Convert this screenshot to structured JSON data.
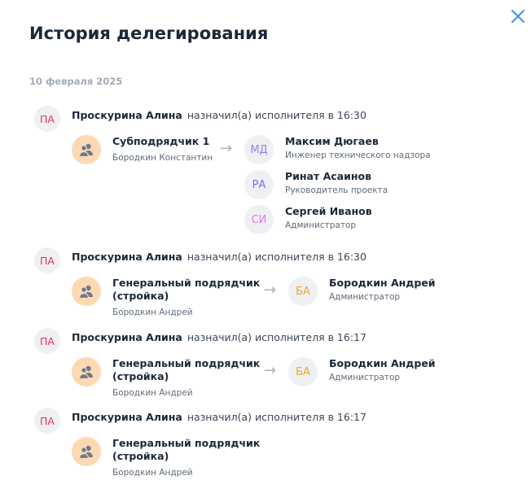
{
  "title": "История делегирования",
  "date": "10 февраля 2025",
  "colors": {
    "actor": "#e8334a",
    "md": "#a27af0",
    "ra": "#7b6cf2",
    "si": "#e07af0",
    "ba": "#f5a623",
    "group_bg": "#fdd9b3"
  },
  "entries": [
    {
      "actor_initials": "ПА",
      "actor": "Проскурина Алина",
      "action": "назначил(а) исполнителя в 16:30",
      "group": {
        "name": "Субподрядчик 1",
        "person": "Бородкин Константин"
      },
      "assignees": [
        {
          "initials": "МД",
          "name": "Максим Дюгаев",
          "role": "Инженер технического надзора",
          "color": "#a27af0"
        },
        {
          "initials": "РА",
          "name": "Ринат Асаинов",
          "role": "Руководитель проекта",
          "color": "#7b6cf2"
        },
        {
          "initials": "СИ",
          "name": "Сергей Иванов",
          "role": "Администратор",
          "color": "#e07af0"
        }
      ]
    },
    {
      "actor_initials": "ПА",
      "actor": "Проскурина Алина",
      "action": "назначил(а) исполнителя в 16:30",
      "group": {
        "name": "Генеральный подрядчик (стройка)",
        "person": "Бородкин Андрей"
      },
      "assignees": [
        {
          "initials": "БА",
          "name": "Бородкин Андрей",
          "role": "Администратор",
          "color": "#f5a623"
        }
      ]
    },
    {
      "actor_initials": "ПА",
      "actor": "Проскурина Алина",
      "action": "назначил(а) исполнителя в 16:17",
      "group": {
        "name": "Генеральный подрядчик (стройка)",
        "person": "Бородкин Андрей"
      },
      "assignees": [
        {
          "initials": "БА",
          "name": "Бородкин Андрей",
          "role": "Администратор",
          "color": "#f5a623"
        }
      ]
    },
    {
      "actor_initials": "ПА",
      "actor": "Проскурина Алина",
      "action": "назначил(а) исполнителя в 16:17",
      "group": {
        "name": "Генеральный подрядчик (стройка)",
        "person": "Бородкин Андрей"
      },
      "assignees": []
    }
  ]
}
